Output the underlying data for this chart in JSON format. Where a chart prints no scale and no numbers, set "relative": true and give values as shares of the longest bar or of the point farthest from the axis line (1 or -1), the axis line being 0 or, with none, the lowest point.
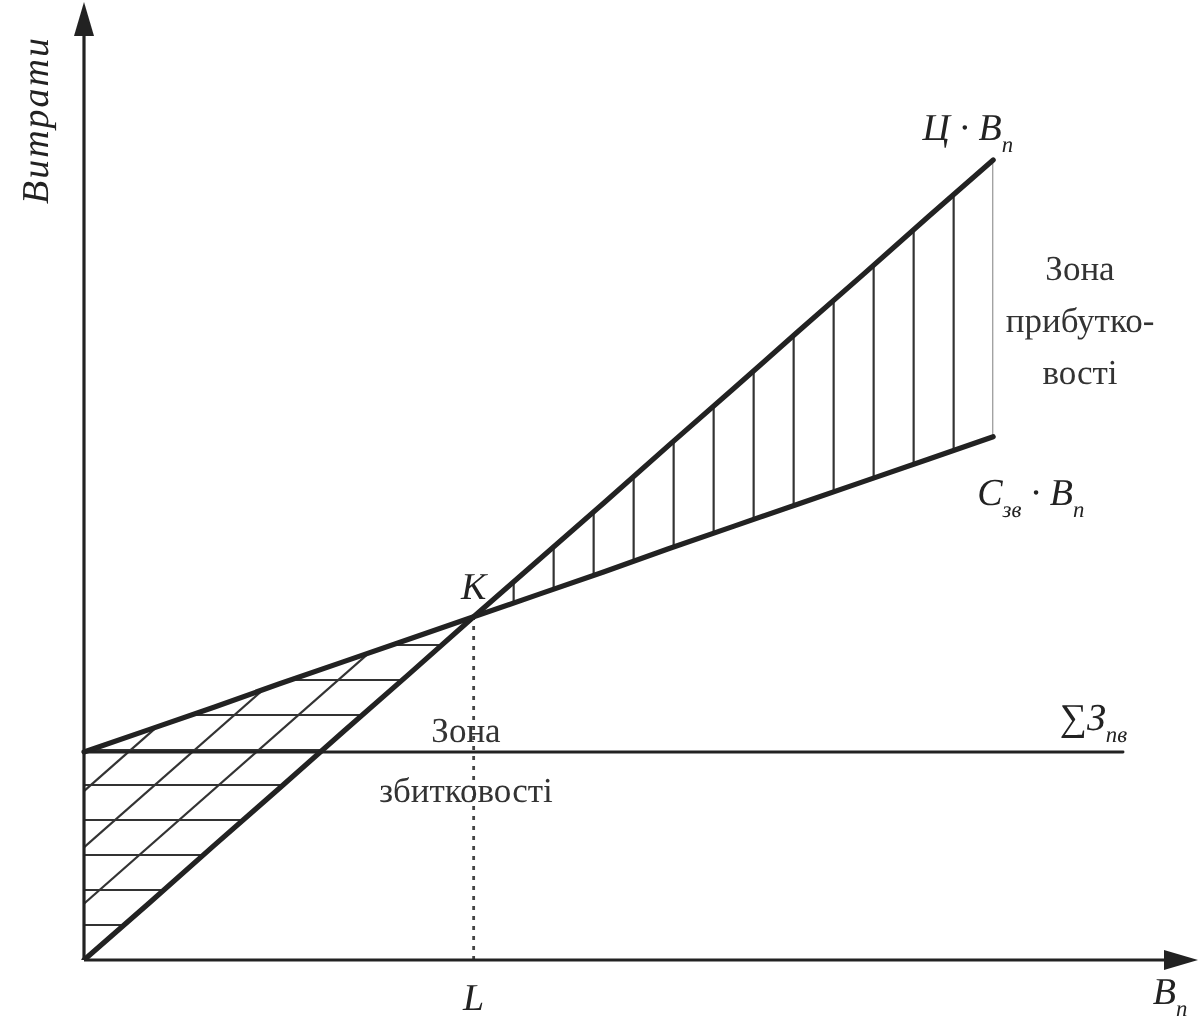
{
  "chart_data": {
    "type": "line",
    "relative": true,
    "categories": [
      null,
      null,
      null,
      null,
      null,
      null,
      null,
      null,
      null,
      null,
      null,
      null,
      null,
      null,
      null,
      null,
      null,
      null
    ],
    "xlabel": "В$_{п}$",
    "ylabel": "Витрати",
    "series": [
      {
        "name": "Ц · В$_{п}$",
        "color": "#222222",
        "values": [
          0,
          0.071,
          0.143,
          0.214,
          0.286,
          0.357,
          0.429,
          0.5,
          0.571,
          0.643,
          0.714,
          0.786,
          0.857,
          0.929,
          1,
          null,
          null,
          null
        ],
        "lower": [
          0,
          0.071,
          0.143,
          0.214,
          0.286,
          0.357,
          0.429,
          0.457,
          0.485,
          0.514,
          0.542,
          0.57,
          0.598,
          0.626,
          0.654,
          null,
          null,
          null
        ],
        "upper": [
          0.26,
          0.288,
          0.316,
          0.345,
          0.373,
          0.401,
          0.429,
          0.5,
          0.571,
          0.643,
          0.714,
          0.786,
          0.857,
          0.929,
          1,
          null,
          null,
          null
        ]
      },
      {
        "name": "С$_{зв}$ · В$_{п}$",
        "color": "#222222",
        "values": [
          0.26,
          0.288,
          0.316,
          0.345,
          0.373,
          0.401,
          0.429,
          0.457,
          0.485,
          0.514,
          0.542,
          0.57,
          0.598,
          0.626,
          0.654,
          null,
          null,
          null
        ]
      },
      {
        "name": "∑З$_{пв}$",
        "color": "#222222",
        "values": [
          0.26,
          0.26,
          0.26,
          0.26,
          0.26,
          0.26,
          0.26,
          0.26,
          0.26,
          0.26,
          0.26,
          0.26,
          0.26,
          0.26,
          0.26,
          0.26,
          0.26,
          null
        ]
      }
    ],
    "annotations": [
      {
        "text": "K",
        "y": 0.429
      },
      "Зона\nприбутко-\nвості",
      "Зона\nзбитковості"
    ],
    "ref_lines": [
      {
        "axis": "x",
        "value": "L",
        "line_style": "dotted",
        "color": "#444444"
      }
    ]
  }
}
